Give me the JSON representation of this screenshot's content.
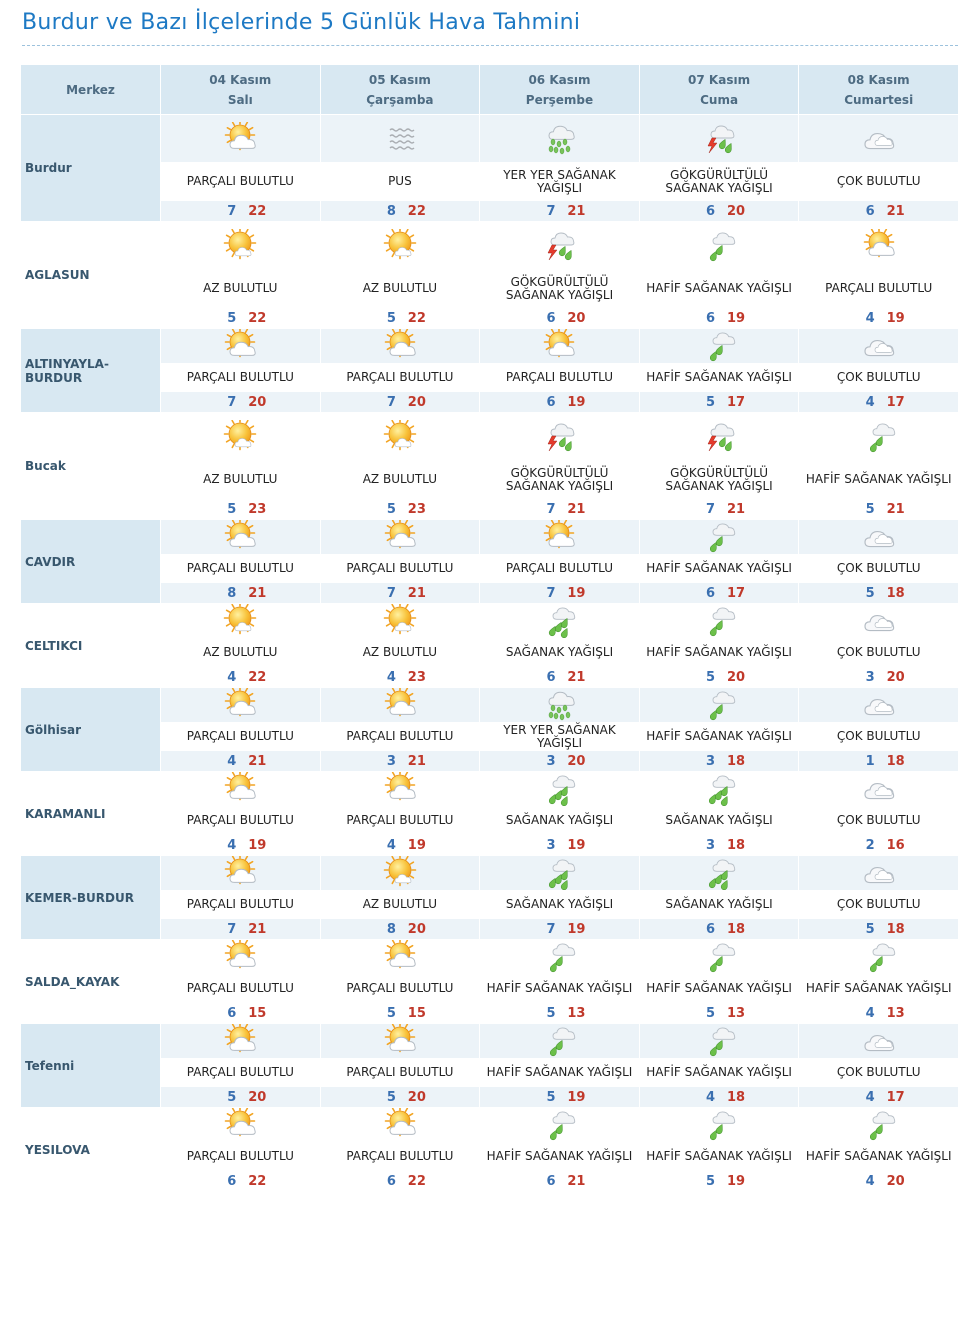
{
  "title": "Burdur ve Bazı İlçelerinde 5 Günlük Hava Tahmini",
  "header": {
    "merkez": "Merkez",
    "days": [
      {
        "date": "04 Kasım",
        "weekday": "Salı"
      },
      {
        "date": "05 Kasım",
        "weekday": "Çarşamba"
      },
      {
        "date": "06 Kasım",
        "weekday": "Perşembe"
      },
      {
        "date": "07 Kasım",
        "weekday": "Cuma"
      },
      {
        "date": "08 Kasım",
        "weekday": "Cumartesi"
      }
    ]
  },
  "rows": [
    {
      "city": "Burdur",
      "days": [
        {
          "icon": "partly-cloudy-icon",
          "cond": "PARÇALI BULUTLU",
          "min": "7",
          "max": "22"
        },
        {
          "icon": "fog-icon",
          "cond": "PUS",
          "min": "8",
          "max": "22"
        },
        {
          "icon": "scattered-showers-icon",
          "cond": "YER YER SAĞANAK YAĞIŞLI",
          "min": "7",
          "max": "21"
        },
        {
          "icon": "thunderstorm-icon",
          "cond": "GÖKGÜRÜLTÜLÜ SAĞANAK YAĞIŞLI",
          "min": "6",
          "max": "20"
        },
        {
          "icon": "overcast-icon",
          "cond": "ÇOK BULUTLU",
          "min": "6",
          "max": "21"
        }
      ]
    },
    {
      "city": "AGLASUN",
      "days": [
        {
          "icon": "mostly-sunny-icon",
          "cond": "AZ BULUTLU",
          "min": "5",
          "max": "22"
        },
        {
          "icon": "mostly-sunny-icon",
          "cond": "AZ BULUTLU",
          "min": "5",
          "max": "22"
        },
        {
          "icon": "thunderstorm-icon",
          "cond": "GÖKGÜRÜLTÜLÜ SAĞANAK YAĞIŞLI",
          "min": "6",
          "max": "20"
        },
        {
          "icon": "light-showers-icon",
          "cond": "HAFİF SAĞANAK YAĞIŞLI",
          "min": "6",
          "max": "19"
        },
        {
          "icon": "partly-cloudy-icon",
          "cond": "PARÇALI BULUTLU",
          "min": "4",
          "max": "19"
        }
      ]
    },
    {
      "city": "ALTINYAYLA-BURDUR",
      "days": [
        {
          "icon": "partly-cloudy-icon",
          "cond": "PARÇALI BULUTLU",
          "min": "7",
          "max": "20"
        },
        {
          "icon": "partly-cloudy-icon",
          "cond": "PARÇALI BULUTLU",
          "min": "7",
          "max": "20"
        },
        {
          "icon": "partly-cloudy-icon",
          "cond": "PARÇALI BULUTLU",
          "min": "6",
          "max": "19"
        },
        {
          "icon": "light-showers-icon",
          "cond": "HAFİF SAĞANAK YAĞIŞLI",
          "min": "5",
          "max": "17"
        },
        {
          "icon": "overcast-icon",
          "cond": "ÇOK BULUTLU",
          "min": "4",
          "max": "17"
        }
      ]
    },
    {
      "city": "Bucak",
      "days": [
        {
          "icon": "mostly-sunny-icon",
          "cond": "AZ BULUTLU",
          "min": "5",
          "max": "23"
        },
        {
          "icon": "mostly-sunny-icon",
          "cond": "AZ BULUTLU",
          "min": "5",
          "max": "23"
        },
        {
          "icon": "thunderstorm-icon",
          "cond": "GÖKGÜRÜLTÜLÜ SAĞANAK YAĞIŞLI",
          "min": "7",
          "max": "21"
        },
        {
          "icon": "thunderstorm-icon",
          "cond": "GÖKGÜRÜLTÜLÜ SAĞANAK YAĞIŞLI",
          "min": "7",
          "max": "21"
        },
        {
          "icon": "light-showers-icon",
          "cond": "HAFİF SAĞANAK YAĞIŞLI",
          "min": "5",
          "max": "21"
        }
      ]
    },
    {
      "city": "CAVDIR",
      "days": [
        {
          "icon": "partly-cloudy-icon",
          "cond": "PARÇALI BULUTLU",
          "min": "8",
          "max": "21"
        },
        {
          "icon": "partly-cloudy-icon",
          "cond": "PARÇALI BULUTLU",
          "min": "7",
          "max": "21"
        },
        {
          "icon": "partly-cloudy-icon",
          "cond": "PARÇALI BULUTLU",
          "min": "7",
          "max": "19"
        },
        {
          "icon": "light-showers-icon",
          "cond": "HAFİF SAĞANAK YAĞIŞLI",
          "min": "6",
          "max": "17"
        },
        {
          "icon": "overcast-icon",
          "cond": "ÇOK BULUTLU",
          "min": "5",
          "max": "18"
        }
      ]
    },
    {
      "city": "CELTIKCI",
      "days": [
        {
          "icon": "mostly-sunny-icon",
          "cond": "AZ BULUTLU",
          "min": "4",
          "max": "22"
        },
        {
          "icon": "mostly-sunny-icon",
          "cond": "AZ BULUTLU",
          "min": "4",
          "max": "23"
        },
        {
          "icon": "heavy-showers-icon",
          "cond": "SAĞANAK YAĞIŞLI",
          "min": "6",
          "max": "21"
        },
        {
          "icon": "light-showers-icon",
          "cond": "HAFİF SAĞANAK YAĞIŞLI",
          "min": "5",
          "max": "20"
        },
        {
          "icon": "overcast-icon",
          "cond": "ÇOK BULUTLU",
          "min": "3",
          "max": "20"
        }
      ]
    },
    {
      "city": "Gölhisar",
      "days": [
        {
          "icon": "partly-cloudy-icon",
          "cond": "PARÇALI BULUTLU",
          "min": "4",
          "max": "21"
        },
        {
          "icon": "partly-cloudy-icon",
          "cond": "PARÇALI BULUTLU",
          "min": "3",
          "max": "21"
        },
        {
          "icon": "scattered-showers-icon",
          "cond": "YER YER SAĞANAK YAĞIŞLI",
          "min": "3",
          "max": "20"
        },
        {
          "icon": "light-showers-icon",
          "cond": "HAFİF SAĞANAK YAĞIŞLI",
          "min": "3",
          "max": "18"
        },
        {
          "icon": "overcast-icon",
          "cond": "ÇOK BULUTLU",
          "min": "1",
          "max": "18"
        }
      ]
    },
    {
      "city": "KARAMANLI",
      "days": [
        {
          "icon": "partly-cloudy-icon",
          "cond": "PARÇALI BULUTLU",
          "min": "4",
          "max": "19"
        },
        {
          "icon": "partly-cloudy-icon",
          "cond": "PARÇALI BULUTLU",
          "min": "4",
          "max": "19"
        },
        {
          "icon": "heavy-showers-icon",
          "cond": "SAĞANAK YAĞIŞLI",
          "min": "3",
          "max": "19"
        },
        {
          "icon": "heavy-showers-icon",
          "cond": "SAĞANAK YAĞIŞLI",
          "min": "3",
          "max": "18"
        },
        {
          "icon": "overcast-icon",
          "cond": "ÇOK BULUTLU",
          "min": "2",
          "max": "16"
        }
      ]
    },
    {
      "city": "KEMER-BURDUR",
      "days": [
        {
          "icon": "partly-cloudy-icon",
          "cond": "PARÇALI BULUTLU",
          "min": "7",
          "max": "21"
        },
        {
          "icon": "mostly-sunny-icon",
          "cond": "AZ BULUTLU",
          "min": "8",
          "max": "20"
        },
        {
          "icon": "heavy-showers-icon",
          "cond": "SAĞANAK YAĞIŞLI",
          "min": "7",
          "max": "19"
        },
        {
          "icon": "heavy-showers-icon",
          "cond": "SAĞANAK YAĞIŞLI",
          "min": "6",
          "max": "18"
        },
        {
          "icon": "overcast-icon",
          "cond": "ÇOK BULUTLU",
          "min": "5",
          "max": "18"
        }
      ]
    },
    {
      "city": "SALDA_KAYAK",
      "days": [
        {
          "icon": "partly-cloudy-icon",
          "cond": "PARÇALI BULUTLU",
          "min": "6",
          "max": "15"
        },
        {
          "icon": "partly-cloudy-icon",
          "cond": "PARÇALI BULUTLU",
          "min": "5",
          "max": "15"
        },
        {
          "icon": "light-showers-icon",
          "cond": "HAFİF SAĞANAK YAĞIŞLI",
          "min": "5",
          "max": "13"
        },
        {
          "icon": "light-showers-icon",
          "cond": "HAFİF SAĞANAK YAĞIŞLI",
          "min": "5",
          "max": "13"
        },
        {
          "icon": "light-showers-icon",
          "cond": "HAFİF SAĞANAK YAĞIŞLI",
          "min": "4",
          "max": "13"
        }
      ]
    },
    {
      "city": "Tefenni",
      "days": [
        {
          "icon": "partly-cloudy-icon",
          "cond": "PARÇALI BULUTLU",
          "min": "5",
          "max": "20"
        },
        {
          "icon": "partly-cloudy-icon",
          "cond": "PARÇALI BULUTLU",
          "min": "5",
          "max": "20"
        },
        {
          "icon": "light-showers-icon",
          "cond": "HAFİF SAĞANAK YAĞIŞLI",
          "min": "5",
          "max": "19"
        },
        {
          "icon": "light-showers-icon",
          "cond": "HAFİF SAĞANAK YAĞIŞLI",
          "min": "4",
          "max": "18"
        },
        {
          "icon": "overcast-icon",
          "cond": "ÇOK BULUTLU",
          "min": "4",
          "max": "17"
        }
      ]
    },
    {
      "city": "YESILOVA",
      "days": [
        {
          "icon": "partly-cloudy-icon",
          "cond": "PARÇALI BULUTLU",
          "min": "6",
          "max": "22"
        },
        {
          "icon": "partly-cloudy-icon",
          "cond": "PARÇALI BULUTLU",
          "min": "6",
          "max": "22"
        },
        {
          "icon": "light-showers-icon",
          "cond": "HAFİF SAĞANAK YAĞIŞLI",
          "min": "6",
          "max": "21"
        },
        {
          "icon": "light-showers-icon",
          "cond": "HAFİF SAĞANAK YAĞIŞLI",
          "min": "5",
          "max": "19"
        },
        {
          "icon": "light-showers-icon",
          "cond": "HAFİF SAĞANAK YAĞIŞLI",
          "min": "4",
          "max": "20"
        }
      ]
    }
  ]
}
